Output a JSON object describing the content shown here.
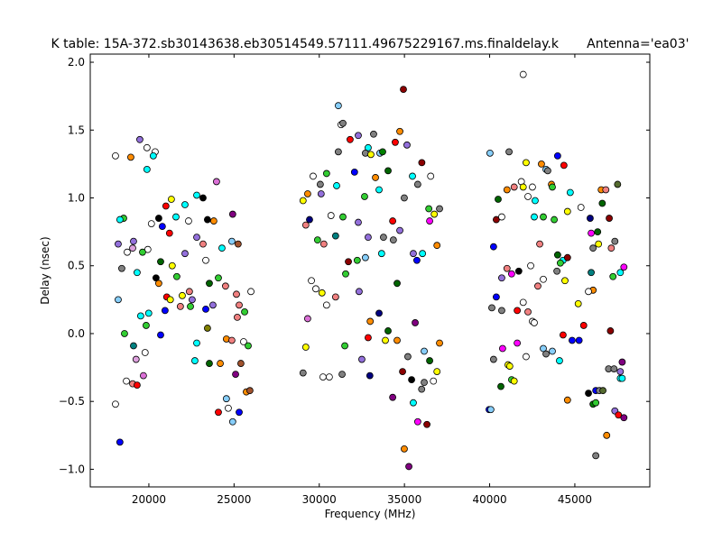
{
  "chart_data": {
    "type": "scatter",
    "title": "K table: 15A-372.sb30143638.eb30514549.57111.49675229167.ms.finaldelay.k       Antenna='ea03'",
    "xlabel": "Frequency (MHz)",
    "ylabel": "Delay (nsec)",
    "xlim": [
      16560,
      49400
    ],
    "ylim": [
      -1.13,
      2.06
    ],
    "xticks": [
      20000,
      25000,
      30000,
      35000,
      40000,
      45000
    ],
    "yticks": [
      {
        "value": -1,
        "label": "−1.0"
      },
      {
        "value": -0.5,
        "label": "−0.5"
      },
      {
        "value": 0,
        "label": "0.0"
      },
      {
        "value": 0.5,
        "label": "0.5"
      },
      {
        "value": 1,
        "label": "1.0"
      },
      {
        "value": 1.5,
        "label": "1.5"
      },
      {
        "value": 2,
        "label": "2.0"
      }
    ],
    "grid": false,
    "x": [
      19470,
      19890,
      20370,
      19890,
      20260,
      18940,
      18040,
      21320,
      22120,
      22810,
      23180,
      23970,
      21000,
      20580,
      18520,
      18300,
      20150,
      21590,
      22330,
      23810,
      23440,
      24920,
      20790,
      21210,
      22810,
      18200,
      19100,
      19050,
      19940,
      23180,
      24290,
      24870,
      25240,
      18730,
      19630,
      20690,
      21370,
      22120,
      23340,
      18410,
      19310,
      20420,
      20580,
      21640,
      22380,
      23550,
      24080,
      24500,
      25140,
      25990,
      18200,
      21050,
      21260,
      21960,
      22540,
      23340,
      19520,
      19990,
      20950,
      21850,
      22440,
      23760,
      25300,
      25620,
      25190,
      19840,
      20690,
      18570,
      23440,
      22810,
      24550,
      24870,
      25560,
      25830,
      19100,
      19780,
      19250,
      22700,
      23550,
      24190,
      25400,
      19680,
      25090,
      18680,
      19050,
      19310,
      18040,
      24550,
      25720,
      25930,
      24080,
      24660,
      25300,
      24920,
      18300,
      31120,
      34940,
      31280,
      31390,
      32290,
      33190,
      34730,
      35150,
      31810,
      32870,
      32710,
      31120,
      33560,
      33720,
      34460,
      33030,
      36020,
      32070,
      30430,
      29640,
      34040,
      35470,
      36540,
      30060,
      31020,
      35780,
      33300,
      34990,
      29320,
      30110,
      29050,
      32660,
      33510,
      30690,
      31390,
      29430,
      32290,
      34310,
      36430,
      37060,
      36750,
      36480,
      29210,
      29900,
      30270,
      30960,
      32870,
      34730,
      33770,
      34350,
      36910,
      33660,
      35520,
      36060,
      29540,
      29800,
      31710,
      32230,
      32710,
      31550,
      32340,
      34570,
      35730,
      30160,
      30960,
      30430,
      29320,
      33510,
      32990,
      35630,
      32870,
      34040,
      33880,
      34570,
      31500,
      37060,
      29210,
      32500,
      35200,
      36160,
      36480,
      29050,
      30220,
      30590,
      31340,
      32970,
      34890,
      36910,
      35420,
      36160,
      36700,
      36010,
      34310,
      35520,
      35780,
      36320,
      34990,
      35260,
      41970,
      40020,
      41140,
      42140,
      43040,
      43310,
      43410,
      43990,
      44360,
      41860,
      41970,
      41440,
      41020,
      42510,
      43630,
      43680,
      44730,
      40500,
      42250,
      42670,
      46550,
      46820,
      47510,
      46610,
      44570,
      45360,
      40390,
      40710,
      42620,
      43150,
      43790,
      45900,
      47020,
      45960,
      46340,
      46390,
      46070,
      47350,
      47140,
      40230,
      42940,
      43990,
      44310,
      44150,
      44570,
      41020,
      41710,
      42410,
      40710,
      41290,
      43150,
      43950,
      44420,
      47880,
      47670,
      47240,
      45960,
      42830,
      46070,
      45800,
      40390,
      41970,
      45200,
      40130,
      40710,
      41620,
      42250,
      42510,
      42620,
      45520,
      47090,
      40760,
      41620,
      43150,
      43310,
      43680,
      44100,
      44310,
      44840,
      45250,
      40230,
      41080,
      41180,
      42140,
      47780,
      47670,
      46980,
      47300,
      40660,
      41290,
      41440,
      47670,
      47780,
      44570,
      45800,
      46230,
      46440,
      46650,
      46070,
      46230,
      39970,
      40070,
      47350,
      47560,
      47880,
      46870,
      46230
    ],
    "y": [
      1.43,
      1.37,
      1.34,
      1.21,
      1.31,
      1.3,
      1.31,
      0.99,
      0.95,
      1.02,
      1.0,
      1.12,
      0.94,
      0.85,
      0.85,
      0.84,
      0.81,
      0.86,
      0.83,
      0.83,
      0.84,
      0.88,
      0.79,
      0.74,
      0.71,
      0.66,
      0.68,
      0.63,
      0.62,
      0.66,
      0.63,
      0.68,
      0.66,
      0.6,
      0.6,
      0.53,
      0.5,
      0.59,
      0.54,
      0.48,
      0.45,
      0.41,
      0.37,
      0.42,
      0.31,
      0.37,
      0.41,
      0.35,
      0.29,
      0.31,
      0.25,
      0.27,
      0.25,
      0.28,
      0.25,
      0.18,
      0.13,
      0.15,
      0.17,
      0.2,
      0.2,
      0.21,
      0.21,
      0.16,
      0.12,
      0.06,
      -0.01,
      0.0,
      0.04,
      -0.07,
      -0.04,
      -0.05,
      -0.06,
      -0.09,
      -0.09,
      -0.14,
      -0.19,
      -0.2,
      -0.22,
      -0.22,
      -0.22,
      -0.31,
      -0.3,
      -0.35,
      -0.37,
      -0.38,
      -0.52,
      -0.48,
      -0.43,
      -0.42,
      -0.58,
      -0.55,
      -0.58,
      -0.65,
      -0.8,
      1.68,
      1.8,
      1.54,
      1.55,
      1.46,
      1.47,
      1.49,
      1.39,
      1.43,
      1.37,
      1.33,
      1.34,
      1.33,
      1.34,
      1.41,
      1.32,
      1.26,
      1.19,
      1.18,
      1.16,
      1.2,
      1.16,
      1.16,
      1.1,
      1.09,
      1.1,
      1.15,
      1.0,
      1.03,
      1.03,
      0.98,
      1.01,
      1.06,
      0.87,
      0.86,
      0.84,
      0.82,
      0.83,
      0.92,
      0.92,
      0.88,
      0.83,
      0.8,
      0.69,
      0.66,
      0.72,
      0.71,
      0.76,
      0.71,
      0.69,
      0.65,
      0.59,
      0.59,
      0.59,
      0.39,
      0.33,
      0.53,
      0.54,
      0.56,
      0.44,
      0.31,
      0.37,
      0.54,
      0.3,
      0.27,
      0.21,
      0.11,
      0.15,
      0.09,
      0.08,
      -0.03,
      0.02,
      -0.05,
      -0.05,
      -0.09,
      -0.07,
      -0.1,
      -0.19,
      -0.17,
      -0.13,
      -0.2,
      -0.29,
      -0.32,
      -0.32,
      -0.3,
      -0.31,
      -0.28,
      -0.28,
      -0.34,
      -0.36,
      -0.35,
      -0.41,
      -0.47,
      -0.51,
      -0.65,
      -0.67,
      -0.85,
      -0.98,
      1.91,
      1.33,
      1.34,
      1.26,
      1.25,
      1.21,
      1.2,
      1.31,
      1.24,
      1.12,
      1.08,
      1.08,
      1.06,
      1.08,
      1.1,
      1.08,
      1.04,
      0.99,
      1.01,
      0.98,
      1.06,
      1.06,
      1.1,
      0.96,
      0.9,
      0.93,
      0.84,
      0.86,
      0.86,
      0.86,
      0.84,
      0.85,
      0.85,
      0.74,
      0.75,
      0.66,
      0.63,
      0.68,
      0.63,
      0.64,
      0.66,
      0.58,
      0.54,
      0.52,
      0.56,
      0.48,
      0.46,
      0.5,
      0.41,
      0.44,
      0.4,
      0.46,
      0.39,
      0.49,
      0.45,
      0.42,
      0.45,
      0.35,
      0.32,
      0.31,
      0.27,
      0.23,
      0.22,
      0.19,
      0.17,
      0.17,
      0.16,
      0.09,
      0.08,
      0.06,
      0.02,
      -0.11,
      -0.07,
      -0.11,
      -0.15,
      -0.13,
      -0.2,
      -0.01,
      -0.05,
      -0.05,
      -0.19,
      -0.23,
      -0.24,
      -0.17,
      -0.21,
      -0.28,
      -0.26,
      -0.26,
      -0.39,
      -0.34,
      -0.35,
      -0.33,
      -0.33,
      -0.49,
      -0.44,
      -0.42,
      -0.42,
      -0.42,
      -0.52,
      -0.51,
      -0.56,
      -0.56,
      -0.57,
      -0.6,
      -0.62,
      -0.75,
      -0.9
    ],
    "colors": [
      "mediumpurple",
      "white",
      "white",
      "cyan",
      "cyan",
      "darkorange",
      "white",
      "yellow",
      "cyan",
      "cyan",
      "black",
      "orchid",
      "red",
      "black",
      "limegreen",
      "cyan",
      "white",
      "cyan",
      "white",
      "darkorange",
      "black",
      "purple",
      "blue",
      "red",
      "mediumpurple",
      "mediumpurple",
      "mediumpurple",
      "plum",
      "white",
      "lightcoral",
      "cyan",
      "lightskyblue",
      "sienna",
      "white",
      "limegreen",
      "darkgreen",
      "yellow",
      "mediumpurple",
      "white",
      "gray",
      "cyan",
      "black",
      "darkorange",
      "limegreen",
      "lightcoral",
      "darkgreen",
      "limegreen",
      "lightcoral",
      "lightcoral",
      "white",
      "lightskyblue",
      "red",
      "yellow",
      "yellow",
      "mediumpurple",
      "blue",
      "cyan",
      "cyan",
      "blue",
      "lightcoral",
      "limegreen",
      "mediumpurple",
      "lightcoral",
      "limegreen",
      "lightcoral",
      "limegreen",
      "blue",
      "limegreen",
      "olive",
      "cyan",
      "darkorange",
      "lightcoral",
      "white",
      "limegreen",
      "teal",
      "white",
      "plum",
      "cyan",
      "darkgreen",
      "darkorange",
      "sienna",
      "orchid",
      "purple",
      "white",
      "lightcoral",
      "red",
      "white",
      "lightskyblue",
      "darkorange",
      "sienna",
      "red",
      "white",
      "blue",
      "lightskyblue",
      "blue",
      "lightskyblue",
      "darkred",
      "white",
      "gray",
      "mediumpurple",
      "gray",
      "darkorange",
      "mediumpurple",
      "red",
      "cyan",
      "gray",
      "gray",
      "lightskyblue",
      "green",
      "red",
      "yellow",
      "darkred",
      "blue",
      "limegreen",
      "white",
      "darkgreen",
      "cyan",
      "white",
      "gray",
      "cyan",
      "gray",
      "darkorange",
      "gray",
      "darkorange",
      "mediumpurple",
      "yellow",
      "limegreen",
      "cyan",
      "white",
      "limegreen",
      "navy",
      "mediumpurple",
      "red",
      "limegreen",
      "gray",
      "yellow",
      "magenta",
      "lightcoral",
      "limegreen",
      "lightcoral",
      "teal",
      "mediumpurple",
      "mediumpurple",
      "gray",
      "gray",
      "darkorange",
      "cyan",
      "mediumpurple",
      "cyan",
      "white",
      "white",
      "darkred",
      "limegreen",
      "lightskyblue",
      "limegreen",
      "mediumpurple",
      "darkgreen",
      "blue",
      "yellow",
      "lightcoral",
      "white",
      "orchid",
      "navy",
      "darkorange",
      "purple",
      "red",
      "darkgreen",
      "yellow",
      "darkorange",
      "limegreen",
      "darkorange",
      "yellow",
      "mediumpurple",
      "gray",
      "lightskyblue",
      "darkgreen",
      "gray",
      "white",
      "white",
      "gray",
      "navy",
      "darkred",
      "yellow",
      "black",
      "gray",
      "white",
      "gray",
      "purple",
      "cyan",
      "magenta",
      "darkred",
      "darkorange",
      "purple",
      "white",
      "lightskyblue",
      "gray",
      "yellow",
      "darkorange",
      "lightskyblue",
      "gray",
      "blue",
      "red",
      "white",
      "yellow",
      "lightcoral",
      "darkorange",
      "white",
      "darkorange",
      "limegreen",
      "cyan",
      "darkgreen",
      "white",
      "cyan",
      "darkorange",
      "lightcoral",
      "darkolivegreen",
      "darkgreen",
      "yellow",
      "white",
      "darkred",
      "white",
      "cyan",
      "limegreen",
      "limegreen",
      "navy",
      "darkred",
      "magenta",
      "darkgreen",
      "yellow",
      "gray",
      "gray",
      "lightcoral",
      "blue",
      "lightcoral",
      "darkgreen",
      "cyan",
      "limegreen",
      "darkred",
      "lightcoral",
      "black",
      "white",
      "mediumpurple",
      "magenta",
      "white",
      "gray",
      "yellow",
      "magenta",
      "cyan",
      "limegreen",
      "teal",
      "lightcoral",
      "darkorange",
      "white",
      "blue",
      "white",
      "yellow",
      "gray",
      "gray",
      "red",
      "lightcoral",
      "white",
      "white",
      "red",
      "darkred",
      "magenta",
      "magenta",
      "lightskyblue",
      "gray",
      "lightskyblue",
      "cyan",
      "red",
      "blue",
      "blue",
      "gray",
      "yellow",
      "yellow",
      "white",
      "purple",
      "mediumpurple",
      "gray",
      "gray",
      "darkgreen",
      "limegreen",
      "yellow",
      "cyan",
      "cyan",
      "darkorange",
      "black",
      "blue",
      "gray",
      "darkolivegreen",
      "green",
      "limegreen",
      "blue",
      "lightskyblue",
      "mediumpurple",
      "red",
      "purple",
      "darkorange",
      "gray"
    ]
  }
}
